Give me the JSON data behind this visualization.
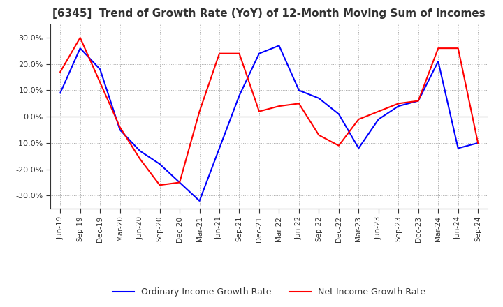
{
  "title": "[6345]  Trend of Growth Rate (YoY) of 12-Month Moving Sum of Incomes",
  "title_fontsize": 11,
  "ylim": [
    -0.35,
    0.35
  ],
  "yticks": [
    -0.3,
    -0.2,
    -0.1,
    0.0,
    0.1,
    0.2,
    0.3
  ],
  "ytick_labels": [
    "-30.0%",
    "-20.0%",
    "-10.0%",
    "0.0%",
    "10.0%",
    "20.0%",
    "30.0%"
  ],
  "background_color": "#ffffff",
  "grid_color": "#aaaaaa",
  "legend_labels": [
    "Ordinary Income Growth Rate",
    "Net Income Growth Rate"
  ],
  "legend_colors": [
    "#0000ff",
    "#ff0000"
  ],
  "x_labels": [
    "Jun-19",
    "Sep-19",
    "Dec-19",
    "Mar-20",
    "Jun-20",
    "Sep-20",
    "Dec-20",
    "Mar-21",
    "Jun-21",
    "Sep-21",
    "Dec-21",
    "Mar-22",
    "Jun-22",
    "Sep-22",
    "Dec-22",
    "Mar-23",
    "Jun-23",
    "Sep-23",
    "Dec-23",
    "Mar-24",
    "Jun-24",
    "Sep-24"
  ],
  "ordinary_income": [
    0.09,
    0.26,
    0.18,
    -0.05,
    -0.13,
    -0.18,
    -0.25,
    -0.32,
    -0.12,
    0.08,
    0.24,
    0.27,
    0.1,
    0.07,
    0.01,
    -0.12,
    -0.01,
    0.04,
    0.06,
    0.21,
    -0.12,
    -0.1
  ],
  "net_income": [
    0.17,
    0.3,
    0.13,
    -0.04,
    -0.16,
    -0.26,
    -0.25,
    0.02,
    0.24,
    0.24,
    0.02,
    0.04,
    0.05,
    -0.07,
    -0.11,
    -0.01,
    0.02,
    0.05,
    0.06,
    0.26,
    0.26,
    -0.1
  ]
}
